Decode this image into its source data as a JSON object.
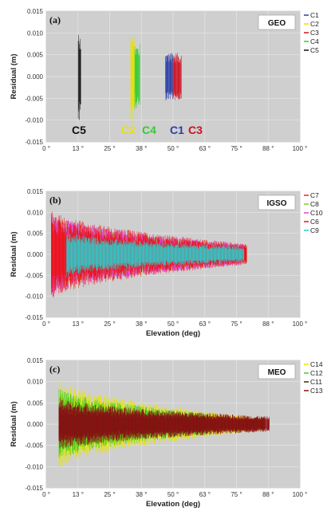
{
  "chart_data": [
    {
      "type": "scatter",
      "panel": "(a)",
      "badge": "GEO",
      "ylabel": "Residual (m)",
      "xlabel": "",
      "ylim": [
        -0.015,
        0.015
      ],
      "xlim": [
        0,
        100
      ],
      "y_ticks": [
        "0.015",
        "0.010",
        "0.005",
        "0.000",
        "-0.005",
        "-0.010",
        "-0.015"
      ],
      "y_tick_values": [
        0.015,
        0.01,
        0.005,
        0,
        -0.005,
        -0.01,
        -0.015
      ],
      "x_ticks": [
        "0 °",
        "13 °",
        "25 °",
        "38 °",
        "50 °",
        "63 °",
        "75 °",
        "88 °",
        "100 °"
      ],
      "x_tick_values": [
        0,
        12.5,
        25,
        37.5,
        50,
        62.5,
        75,
        87.5,
        100
      ],
      "grid": true,
      "legend_position": "right",
      "series": [
        {
          "name": "C1",
          "color": "#2b3fa8",
          "xmin": 47.0,
          "xmax": 50.0,
          "amp": 0.0055,
          "inline_label": "C1"
        },
        {
          "name": "C2",
          "color": "#e8e200",
          "xmin": 33.3,
          "xmax": 35.0,
          "amp": 0.0105,
          "inline_label": "C2"
        },
        {
          "name": "C3",
          "color": "#d01020",
          "xmin": 50.0,
          "xmax": 53.3,
          "amp": 0.0055,
          "inline_label": "C3"
        },
        {
          "name": "C4",
          "color": "#33cc33",
          "xmin": 34.9,
          "xmax": 37.0,
          "amp": 0.0075,
          "inline_label": "C4"
        },
        {
          "name": "C5",
          "color": "#111111",
          "xmin": 12.6,
          "xmax": 13.6,
          "amp": 0.0105,
          "inline_label": "C5"
        }
      ]
    },
    {
      "type": "scatter",
      "panel": "(b)",
      "badge": "IGSO",
      "ylabel": "Residual (m)",
      "xlabel": "Elevation (deg)",
      "ylim": [
        -0.015,
        0.015
      ],
      "xlim": [
        0,
        100
      ],
      "y_ticks": [
        "0.015",
        "0.010",
        "0.005",
        "0.000",
        "-0.005",
        "-0.010",
        "-0.015"
      ],
      "y_tick_values": [
        0.015,
        0.01,
        0.005,
        0,
        -0.005,
        -0.01,
        -0.015
      ],
      "x_ticks": [
        "0 °",
        "13 °",
        "25 °",
        "38 °",
        "50 °",
        "63 °",
        "75 °",
        "88 °",
        "100 °"
      ],
      "x_tick_values": [
        0,
        12.5,
        25,
        37.5,
        50,
        62.5,
        75,
        87.5,
        100
      ],
      "grid": true,
      "legend_position": "right",
      "series": [
        {
          "name": "C7",
          "color": "#ee2222",
          "xmin": 2.0,
          "xmax": 79.0,
          "amp_start": 0.011,
          "amp_end": 0.0025
        },
        {
          "name": "C8",
          "color": "#88cc22",
          "xmin": 2.0,
          "xmax": 78.0,
          "amp_start": 0.009,
          "amp_end": 0.0022
        },
        {
          "name": "C10",
          "color": "#e040e0",
          "xmin": 2.0,
          "xmax": 78.0,
          "amp_start": 0.01,
          "amp_end": 0.0025
        },
        {
          "name": "C6",
          "color": "#ee1111",
          "xmin": 2.0,
          "xmax": 79.0,
          "amp_start": 0.0095,
          "amp_end": 0.0022
        },
        {
          "name": "C9",
          "color": "#33c8c8",
          "xmin": 8.0,
          "xmax": 78.0,
          "amp_start": 0.0055,
          "amp_end": 0.0018
        }
      ]
    },
    {
      "type": "scatter",
      "panel": "(c)",
      "badge": "MEO",
      "ylabel": "Residual (m)",
      "xlabel": "Elevation (deg)",
      "ylim": [
        -0.015,
        0.015
      ],
      "xlim": [
        0,
        100
      ],
      "y_ticks": [
        "0.015",
        "0.010",
        "0.005",
        "0.000",
        "-0.005",
        "-0.010",
        "-0.015"
      ],
      "y_tick_values": [
        0.015,
        0.01,
        0.005,
        0,
        -0.005,
        -0.01,
        -0.015
      ],
      "x_ticks": [
        "0 °",
        "13 °",
        "25 °",
        "38 °",
        "50 °",
        "63 °",
        "75 °",
        "88 °",
        "100 °"
      ],
      "x_tick_values": [
        0,
        12.5,
        25,
        37.5,
        50,
        62.5,
        75,
        87.5,
        100
      ],
      "grid": true,
      "legend_position": "right",
      "series": [
        {
          "name": "C14",
          "color": "#e6e600",
          "xmin": 5.0,
          "xmax": 86.0,
          "amp_start": 0.011,
          "amp_end": 0.0015
        },
        {
          "name": "C12",
          "color": "#44cc22",
          "xmin": 5.0,
          "xmax": 64.0,
          "amp_start": 0.009,
          "amp_end": 0.0025
        },
        {
          "name": "C11",
          "color": "#3a2a00",
          "xmin": 5.0,
          "xmax": 86.0,
          "amp_start": 0.004,
          "amp_end": 0.0015
        },
        {
          "name": "C13",
          "color": "#8c0f14",
          "xmin": 5.0,
          "xmax": 88.0,
          "amp_start": 0.0065,
          "amp_end": 0.0018
        }
      ]
    }
  ]
}
